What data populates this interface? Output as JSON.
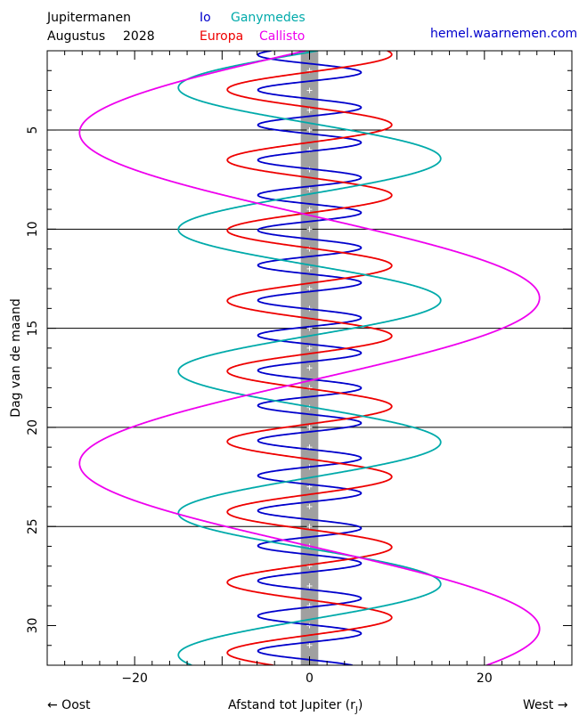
{
  "header": {
    "title_line1": "Jupitermanen",
    "title_month": "Augustus",
    "title_year": "2028",
    "credit": "hemel.waarnemen.com"
  },
  "footer": {
    "left": "← Oost",
    "right": "West →",
    "xlabel_main": "Afstand tot Jupiter (r",
    "xlabel_sub": "J",
    "xlabel_close": ")"
  },
  "chart_data": {
    "type": "line",
    "title": "Jupitermanen Augustus 2028",
    "xlabel": "Afstand tot Jupiter (rJ)",
    "ylabel": "Dag van de maand",
    "xlim": [
      -30,
      30
    ],
    "ylim": [
      1,
      32
    ],
    "y_inverted": true,
    "x_ticks": [
      -20,
      0,
      20
    ],
    "y_ticks": [
      5,
      10,
      15,
      20,
      25,
      30
    ],
    "grid_lines_y": [
      5,
      10,
      15,
      20,
      25
    ],
    "jupiter_band_halfwidth": 1,
    "legend_placement": "top",
    "series": [
      {
        "name": "Io",
        "color": "#0000cc",
        "amplitude": 5.9,
        "period_days": 1.769,
        "phase_day": 1.65
      },
      {
        "name": "Europa",
        "color": "#ee0000",
        "amplitude": 9.4,
        "period_days": 3.551,
        "phase_day": 3.85
      },
      {
        "name": "Ganymedes",
        "color": "#00aaaa",
        "amplitude": 15.0,
        "period_days": 7.155,
        "phase_day": 4.65
      },
      {
        "name": "Callisto",
        "color": "#ee00ee",
        "amplitude": 26.3,
        "period_days": 16.689,
        "phase_day": 9.3
      }
    ]
  }
}
